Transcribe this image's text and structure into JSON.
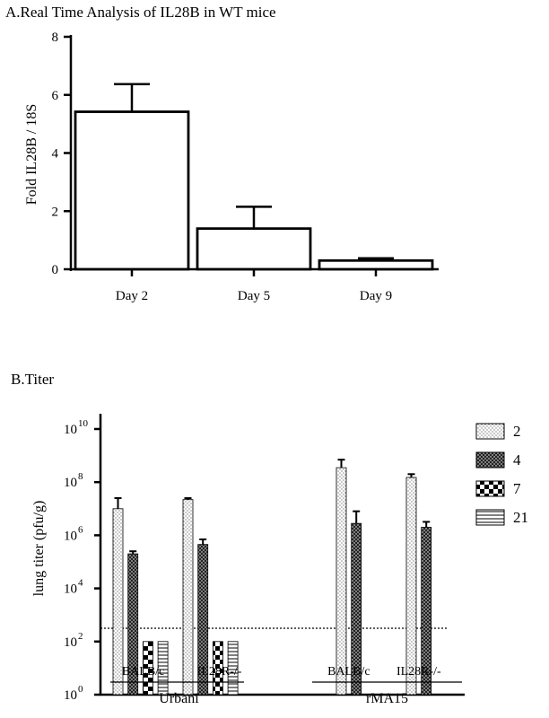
{
  "chart_data": [
    {
      "type": "bar",
      "title": "A.Real Time Analysis of IL28B in WT mice",
      "ylabel": "Fold IL28B / 18S",
      "xlabel": "",
      "ylim": [
        0,
        8
      ],
      "yticks": [
        "0",
        "2",
        "4",
        "6",
        "8"
      ],
      "grid": false,
      "categories": [
        "Day 2",
        "Day 5",
        "Day 9"
      ],
      "values": [
        5.42,
        1.4,
        0.3
      ],
      "errors": [
        0.95,
        0.75,
        0.08
      ],
      "colors": {
        "bar_fill": "#ffffff",
        "bar_stroke": "#000000"
      }
    },
    {
      "type": "bar",
      "title": "B.Titer",
      "ylabel": "lung titer (pfu/g)",
      "xlabel": "",
      "yscale": "log",
      "ylim": [
        1,
        10000000000
      ],
      "yticks": [
        {
          "base": "10",
          "exp": "0"
        },
        {
          "base": "10",
          "exp": "2"
        },
        {
          "base": "10",
          "exp": "4"
        },
        {
          "base": "10",
          "exp": "6"
        },
        {
          "base": "10",
          "exp": "8"
        },
        {
          "base": "10",
          "exp": "10"
        }
      ],
      "detection_limit": 100,
      "grid": false,
      "legend_position": "right",
      "legend": [
        "2",
        "4",
        "7",
        "21"
      ],
      "groups": [
        {
          "virus": "Urbani",
          "strains": [
            {
              "name": "BALB/c",
              "bars": [
                {
                  "day": "2",
                  "value": 10000000,
                  "err_high": 25000000
                },
                {
                  "day": "4",
                  "value": 200000,
                  "err_high": 250000
                },
                {
                  "day": "7",
                  "value": 100,
                  "err_high": 100
                },
                {
                  "day": "21",
                  "value": 100,
                  "err_high": 100
                }
              ]
            },
            {
              "name": "IL28R-/-",
              "bars": [
                {
                  "day": "2",
                  "value": 22000000,
                  "err_high": 25000000
                },
                {
                  "day": "4",
                  "value": 450000,
                  "err_high": 700000
                },
                {
                  "day": "7",
                  "value": 100,
                  "err_high": 100
                },
                {
                  "day": "21",
                  "value": 100,
                  "err_high": 100
                }
              ]
            }
          ]
        },
        {
          "virus": "rMA15",
          "strains": [
            {
              "name": "BALB/c",
              "bars": [
                {
                  "day": "2",
                  "value": 350000000,
                  "err_high": 700000000
                },
                {
                  "day": "4",
                  "value": 2800000,
                  "err_high": 8000000
                }
              ]
            },
            {
              "name": "IL28R-/-",
              "bars": [
                {
                  "day": "2",
                  "value": 150000000,
                  "err_high": 200000000
                },
                {
                  "day": "4",
                  "value": 2000000,
                  "err_high": 3200000
                }
              ]
            }
          ]
        }
      ]
    }
  ]
}
